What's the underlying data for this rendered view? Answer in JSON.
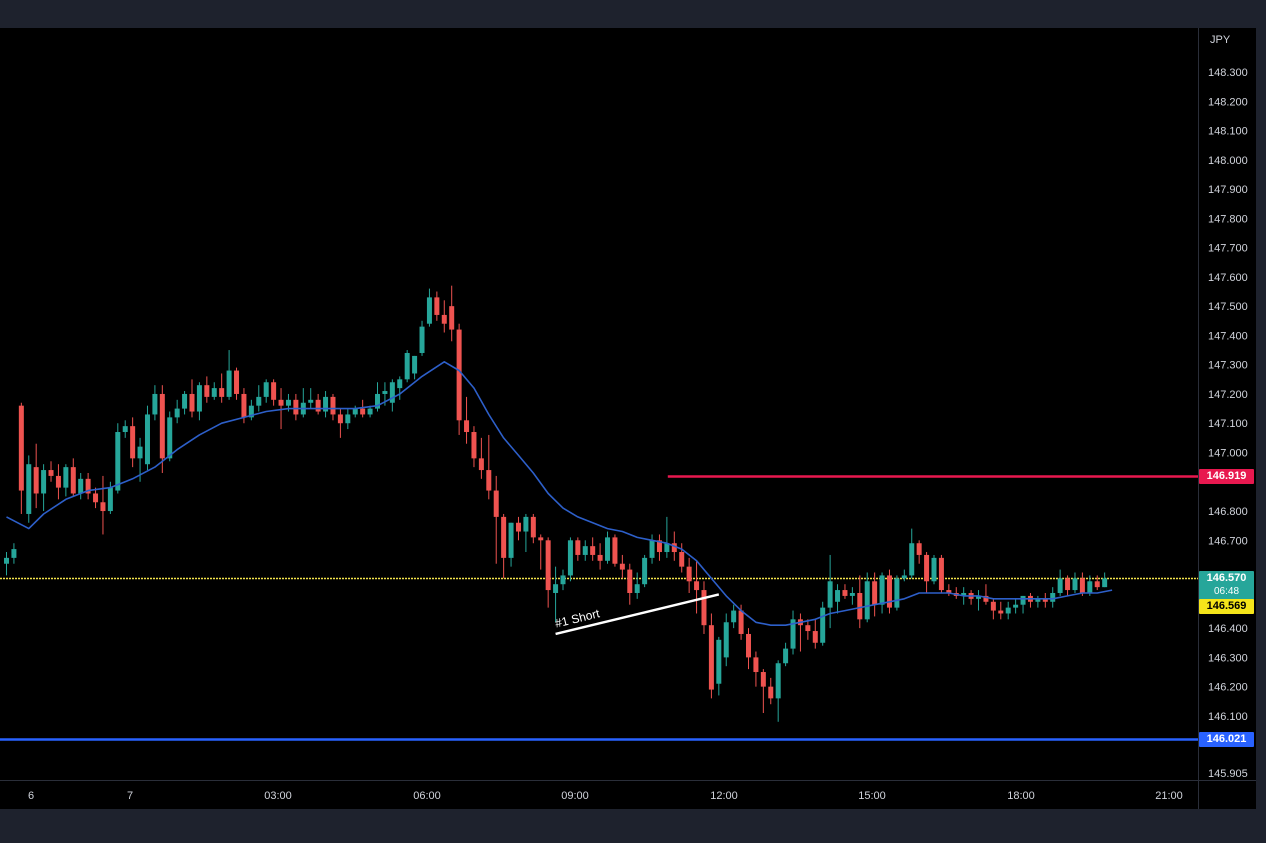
{
  "colors": {
    "frame": "#1e222d",
    "background": "#000000",
    "up": "#26a69a",
    "down": "#ef5350",
    "ma": "#2d5fc9",
    "resistance": "#e8184f",
    "support": "#2962ff",
    "last_price_line": "#f2e24b",
    "axis_text": "#d1d4dc",
    "axis_line": "#2a2e39"
  },
  "chart_data": {
    "type": "candlestick",
    "currency_label": "JPY",
    "y_ticks": [
      "148.300",
      "148.200",
      "148.100",
      "148.000",
      "147.900",
      "147.800",
      "147.700",
      "147.600",
      "147.500",
      "147.400",
      "147.300",
      "147.200",
      "147.100",
      "147.000",
      "146.800",
      "146.700",
      "146.400",
      "146.300",
      "146.200",
      "146.100",
      "145.905"
    ],
    "x_ticks": [
      "6",
      "7",
      "03:00",
      "06:00",
      "09:00",
      "12:00",
      "15:00",
      "18:00",
      "21:00"
    ],
    "ylim": [
      145.86,
      148.42
    ],
    "start_slot": 0,
    "candles": [
      [
        146.62,
        146.66,
        146.58,
        146.64
      ],
      [
        146.64,
        146.69,
        146.62,
        146.67
      ],
      [
        147.16,
        147.17,
        146.79,
        146.87
      ],
      [
        146.79,
        146.99,
        146.76,
        146.96
      ],
      [
        146.95,
        147.03,
        146.81,
        146.86
      ],
      [
        146.86,
        146.96,
        146.8,
        146.94
      ],
      [
        146.94,
        146.97,
        146.9,
        146.92
      ],
      [
        146.92,
        146.96,
        146.84,
        146.88
      ],
      [
        146.88,
        146.96,
        146.85,
        146.95
      ],
      [
        146.95,
        146.98,
        146.85,
        146.86
      ],
      [
        146.86,
        146.93,
        146.84,
        146.91
      ],
      [
        146.91,
        146.93,
        146.84,
        146.86
      ],
      [
        146.86,
        146.88,
        146.81,
        146.83
      ],
      [
        146.83,
        146.92,
        146.72,
        146.8
      ],
      [
        146.8,
        146.9,
        146.79,
        146.88
      ],
      [
        146.87,
        147.1,
        146.86,
        147.07
      ],
      [
        147.07,
        147.11,
        147.05,
        147.09
      ],
      [
        147.09,
        147.12,
        146.95,
        146.98
      ],
      [
        146.98,
        147.05,
        146.9,
        147.02
      ],
      [
        146.96,
        147.16,
        146.94,
        147.13
      ],
      [
        147.13,
        147.23,
        147.11,
        147.2
      ],
      [
        147.2,
        147.23,
        146.93,
        146.98
      ],
      [
        146.98,
        147.14,
        146.97,
        147.12
      ],
      [
        147.12,
        147.18,
        147.1,
        147.15
      ],
      [
        147.15,
        147.21,
        147.13,
        147.2
      ],
      [
        147.2,
        147.25,
        147.12,
        147.14
      ],
      [
        147.14,
        147.24,
        147.11,
        147.23
      ],
      [
        147.23,
        147.26,
        147.17,
        147.19
      ],
      [
        147.19,
        147.24,
        147.18,
        147.22
      ],
      [
        147.22,
        147.27,
        147.17,
        147.19
      ],
      [
        147.19,
        147.35,
        147.18,
        147.28
      ],
      [
        147.28,
        147.29,
        147.18,
        147.2
      ],
      [
        147.2,
        147.22,
        147.1,
        147.12
      ],
      [
        147.12,
        147.18,
        147.11,
        147.16
      ],
      [
        147.16,
        147.23,
        147.14,
        147.19
      ],
      [
        147.19,
        147.25,
        147.17,
        147.24
      ],
      [
        147.24,
        147.25,
        147.16,
        147.18
      ],
      [
        147.18,
        147.22,
        147.08,
        147.16
      ],
      [
        147.16,
        147.2,
        147.14,
        147.18
      ],
      [
        147.18,
        147.2,
        147.11,
        147.13
      ],
      [
        147.13,
        147.22,
        147.12,
        147.17
      ],
      [
        147.17,
        147.22,
        147.15,
        147.18
      ],
      [
        147.18,
        147.2,
        147.13,
        147.14
      ],
      [
        147.14,
        147.21,
        147.12,
        147.19
      ],
      [
        147.19,
        147.2,
        147.11,
        147.13
      ],
      [
        147.13,
        147.15,
        147.05,
        147.1
      ],
      [
        147.1,
        147.15,
        147.08,
        147.13
      ],
      [
        147.13,
        147.16,
        147.12,
        147.15
      ],
      [
        147.15,
        147.18,
        147.12,
        147.13
      ],
      [
        147.13,
        147.16,
        147.12,
        147.15
      ],
      [
        147.15,
        147.24,
        147.14,
        147.2
      ],
      [
        147.2,
        147.24,
        147.16,
        147.21
      ],
      [
        147.17,
        147.25,
        147.14,
        147.24
      ],
      [
        147.22,
        147.26,
        147.18,
        147.25
      ],
      [
        147.25,
        147.35,
        147.24,
        147.34
      ],
      [
        147.27,
        147.33,
        147.25,
        147.33
      ],
      [
        147.34,
        147.45,
        147.33,
        147.43
      ],
      [
        147.44,
        147.56,
        147.43,
        147.53
      ],
      [
        147.53,
        147.55,
        147.45,
        147.47
      ],
      [
        147.47,
        147.52,
        147.41,
        147.44
      ],
      [
        147.5,
        147.57,
        147.38,
        147.42
      ],
      [
        147.42,
        147.44,
        147.06,
        147.11
      ],
      [
        147.11,
        147.19,
        147.03,
        147.07
      ],
      [
        147.07,
        147.09,
        146.95,
        146.98
      ],
      [
        146.98,
        147.05,
        146.91,
        146.94
      ],
      [
        146.94,
        147.06,
        146.84,
        146.87
      ],
      [
        146.87,
        146.92,
        146.62,
        146.78
      ],
      [
        146.78,
        146.79,
        146.57,
        146.64
      ],
      [
        146.64,
        146.76,
        146.61,
        146.76
      ],
      [
        146.76,
        146.78,
        146.7,
        146.73
      ],
      [
        146.73,
        146.79,
        146.66,
        146.78
      ],
      [
        146.78,
        146.79,
        146.69,
        146.71
      ],
      [
        146.71,
        146.72,
        146.6,
        146.7
      ],
      [
        146.7,
        146.71,
        146.47,
        146.53
      ],
      [
        146.52,
        146.61,
        146.42,
        146.55
      ],
      [
        146.55,
        146.6,
        146.53,
        146.58
      ],
      [
        146.58,
        146.71,
        146.56,
        146.7
      ],
      [
        146.7,
        146.71,
        146.63,
        146.65
      ],
      [
        146.65,
        146.7,
        146.63,
        146.68
      ],
      [
        146.68,
        146.71,
        146.63,
        146.65
      ],
      [
        146.65,
        146.69,
        146.6,
        146.63
      ],
      [
        146.63,
        146.73,
        146.62,
        146.71
      ],
      [
        146.71,
        146.72,
        146.61,
        146.62
      ],
      [
        146.62,
        146.65,
        146.57,
        146.6
      ],
      [
        146.6,
        146.62,
        146.48,
        146.52
      ],
      [
        146.52,
        146.59,
        146.5,
        146.55
      ],
      [
        146.55,
        146.65,
        146.54,
        146.64
      ],
      [
        146.64,
        146.72,
        146.62,
        146.7
      ],
      [
        146.7,
        146.72,
        146.63,
        146.66
      ],
      [
        146.66,
        146.78,
        146.64,
        146.69
      ],
      [
        146.69,
        146.73,
        146.63,
        146.66
      ],
      [
        146.66,
        146.69,
        146.59,
        146.61
      ],
      [
        146.61,
        146.64,
        146.52,
        146.56
      ],
      [
        146.56,
        146.63,
        146.45,
        146.53
      ],
      [
        146.53,
        146.56,
        146.38,
        146.41
      ],
      [
        146.41,
        146.45,
        146.16,
        146.19
      ],
      [
        146.21,
        146.37,
        146.17,
        146.36
      ],
      [
        146.3,
        146.45,
        146.27,
        146.42
      ],
      [
        146.42,
        146.48,
        146.4,
        146.46
      ],
      [
        146.46,
        146.48,
        146.36,
        146.38
      ],
      [
        146.38,
        146.4,
        146.26,
        146.3
      ],
      [
        146.3,
        146.32,
        146.2,
        146.25
      ],
      [
        146.25,
        146.26,
        146.11,
        146.2
      ],
      [
        146.2,
        146.23,
        146.14,
        146.16
      ],
      [
        146.16,
        146.29,
        146.08,
        146.28
      ],
      [
        146.28,
        146.35,
        146.27,
        146.33
      ],
      [
        146.33,
        146.46,
        146.31,
        146.43
      ],
      [
        146.43,
        146.45,
        146.32,
        146.41
      ],
      [
        146.41,
        146.43,
        146.36,
        146.39
      ],
      [
        146.39,
        146.43,
        146.33,
        146.35
      ],
      [
        146.35,
        146.49,
        146.34,
        146.47
      ],
      [
        146.47,
        146.65,
        146.4,
        146.56
      ],
      [
        146.49,
        146.55,
        146.45,
        146.53
      ],
      [
        146.53,
        146.55,
        146.5,
        146.51
      ],
      [
        146.51,
        146.54,
        146.48,
        146.52
      ],
      [
        146.52,
        146.58,
        146.4,
        146.43
      ],
      [
        146.43,
        146.59,
        146.42,
        146.56
      ],
      [
        146.56,
        146.59,
        146.44,
        146.48
      ],
      [
        146.48,
        146.59,
        146.45,
        146.58
      ],
      [
        146.58,
        146.6,
        146.45,
        146.47
      ],
      [
        146.47,
        146.58,
        146.46,
        146.57
      ],
      [
        146.57,
        146.6,
        146.56,
        146.58
      ],
      [
        146.58,
        146.74,
        146.57,
        146.69
      ],
      [
        146.69,
        146.7,
        146.62,
        146.65
      ],
      [
        146.65,
        146.66,
        146.52,
        146.56
      ],
      [
        146.56,
        146.65,
        146.55,
        146.64
      ],
      [
        146.64,
        146.65,
        146.52,
        146.53
      ],
      [
        146.53,
        146.55,
        146.51,
        146.52
      ],
      [
        146.52,
        146.54,
        146.5,
        146.51
      ],
      [
        146.51,
        146.54,
        146.48,
        146.52
      ],
      [
        146.52,
        146.53,
        146.48,
        146.5
      ],
      [
        146.5,
        146.53,
        146.46,
        146.51
      ],
      [
        146.51,
        146.55,
        146.48,
        146.49
      ],
      [
        146.49,
        146.5,
        146.43,
        146.46
      ],
      [
        146.46,
        146.49,
        146.43,
        146.45
      ],
      [
        146.45,
        146.49,
        146.43,
        146.47
      ],
      [
        146.47,
        146.5,
        146.45,
        146.48
      ],
      [
        146.48,
        146.51,
        146.45,
        146.51
      ],
      [
        146.51,
        146.52,
        146.47,
        146.49
      ],
      [
        146.49,
        146.51,
        146.47,
        146.5
      ],
      [
        146.5,
        146.52,
        146.47,
        146.49
      ],
      [
        146.49,
        146.54,
        146.47,
        146.52
      ],
      [
        146.52,
        146.6,
        146.51,
        146.57
      ],
      [
        146.57,
        146.58,
        146.51,
        146.53
      ],
      [
        146.53,
        146.59,
        146.52,
        146.57
      ],
      [
        146.57,
        146.59,
        146.51,
        146.52
      ],
      [
        146.52,
        146.58,
        146.51,
        146.56
      ],
      [
        146.56,
        146.58,
        146.53,
        146.54
      ],
      [
        146.54,
        146.59,
        146.54,
        146.57
      ]
    ],
    "ma_line": [
      [
        0,
        146.78
      ],
      [
        3,
        146.74
      ],
      [
        5,
        146.79
      ],
      [
        8,
        146.84
      ],
      [
        11,
        146.87
      ],
      [
        14,
        146.88
      ],
      [
        17,
        146.91
      ],
      [
        20,
        146.95
      ],
      [
        23,
        147.01
      ],
      [
        26,
        147.06
      ],
      [
        29,
        147.1
      ],
      [
        32,
        147.12
      ],
      [
        35,
        147.14
      ],
      [
        38,
        147.15
      ],
      [
        41,
        147.15
      ],
      [
        44,
        147.15
      ],
      [
        47,
        147.15
      ],
      [
        50,
        147.16
      ],
      [
        53,
        147.2
      ],
      [
        56,
        147.26
      ],
      [
        59,
        147.31
      ],
      [
        61,
        147.28
      ],
      [
        63,
        147.22
      ],
      [
        65,
        147.13
      ],
      [
        67,
        147.05
      ],
      [
        69,
        146.99
      ],
      [
        71,
        146.93
      ],
      [
        73,
        146.86
      ],
      [
        75,
        146.81
      ],
      [
        77,
        146.78
      ],
      [
        79,
        146.76
      ],
      [
        81,
        146.74
      ],
      [
        83,
        146.73
      ],
      [
        85,
        146.71
      ],
      [
        87,
        146.7
      ],
      [
        89,
        146.69
      ],
      [
        91,
        146.67
      ],
      [
        93,
        146.63
      ],
      [
        95,
        146.57
      ],
      [
        97,
        146.51
      ],
      [
        99,
        146.46
      ],
      [
        101,
        146.42
      ],
      [
        103,
        146.41
      ],
      [
        105,
        146.41
      ],
      [
        107,
        146.42
      ],
      [
        109,
        146.43
      ],
      [
        111,
        146.45
      ],
      [
        113,
        146.46
      ],
      [
        115,
        146.47
      ],
      [
        117,
        146.48
      ],
      [
        119,
        146.49
      ],
      [
        121,
        146.5
      ],
      [
        123,
        146.52
      ],
      [
        125,
        146.52
      ],
      [
        127,
        146.52
      ],
      [
        129,
        146.51
      ],
      [
        131,
        146.51
      ],
      [
        133,
        146.5
      ],
      [
        135,
        146.5
      ],
      [
        137,
        146.5
      ],
      [
        139,
        146.5
      ],
      [
        141,
        146.5
      ],
      [
        143,
        146.51
      ],
      [
        145,
        146.52
      ],
      [
        147,
        146.52
      ],
      [
        149,
        146.53
      ]
    ],
    "levels": [
      {
        "price": 146.919,
        "label": "146.919",
        "from_slot": 90
      },
      {
        "price": 146.021,
        "label": "146.021",
        "from_slot": 0
      }
    ],
    "last_price": {
      "price": 146.57,
      "label": "146.570",
      "countdown": "06:48"
    },
    "bid_label": {
      "price": 146.569,
      "label": "146.569"
    },
    "annotation": {
      "text": "#1 Short",
      "from": [
        74,
        146.38
      ],
      "to": [
        96,
        146.515
      ]
    }
  }
}
